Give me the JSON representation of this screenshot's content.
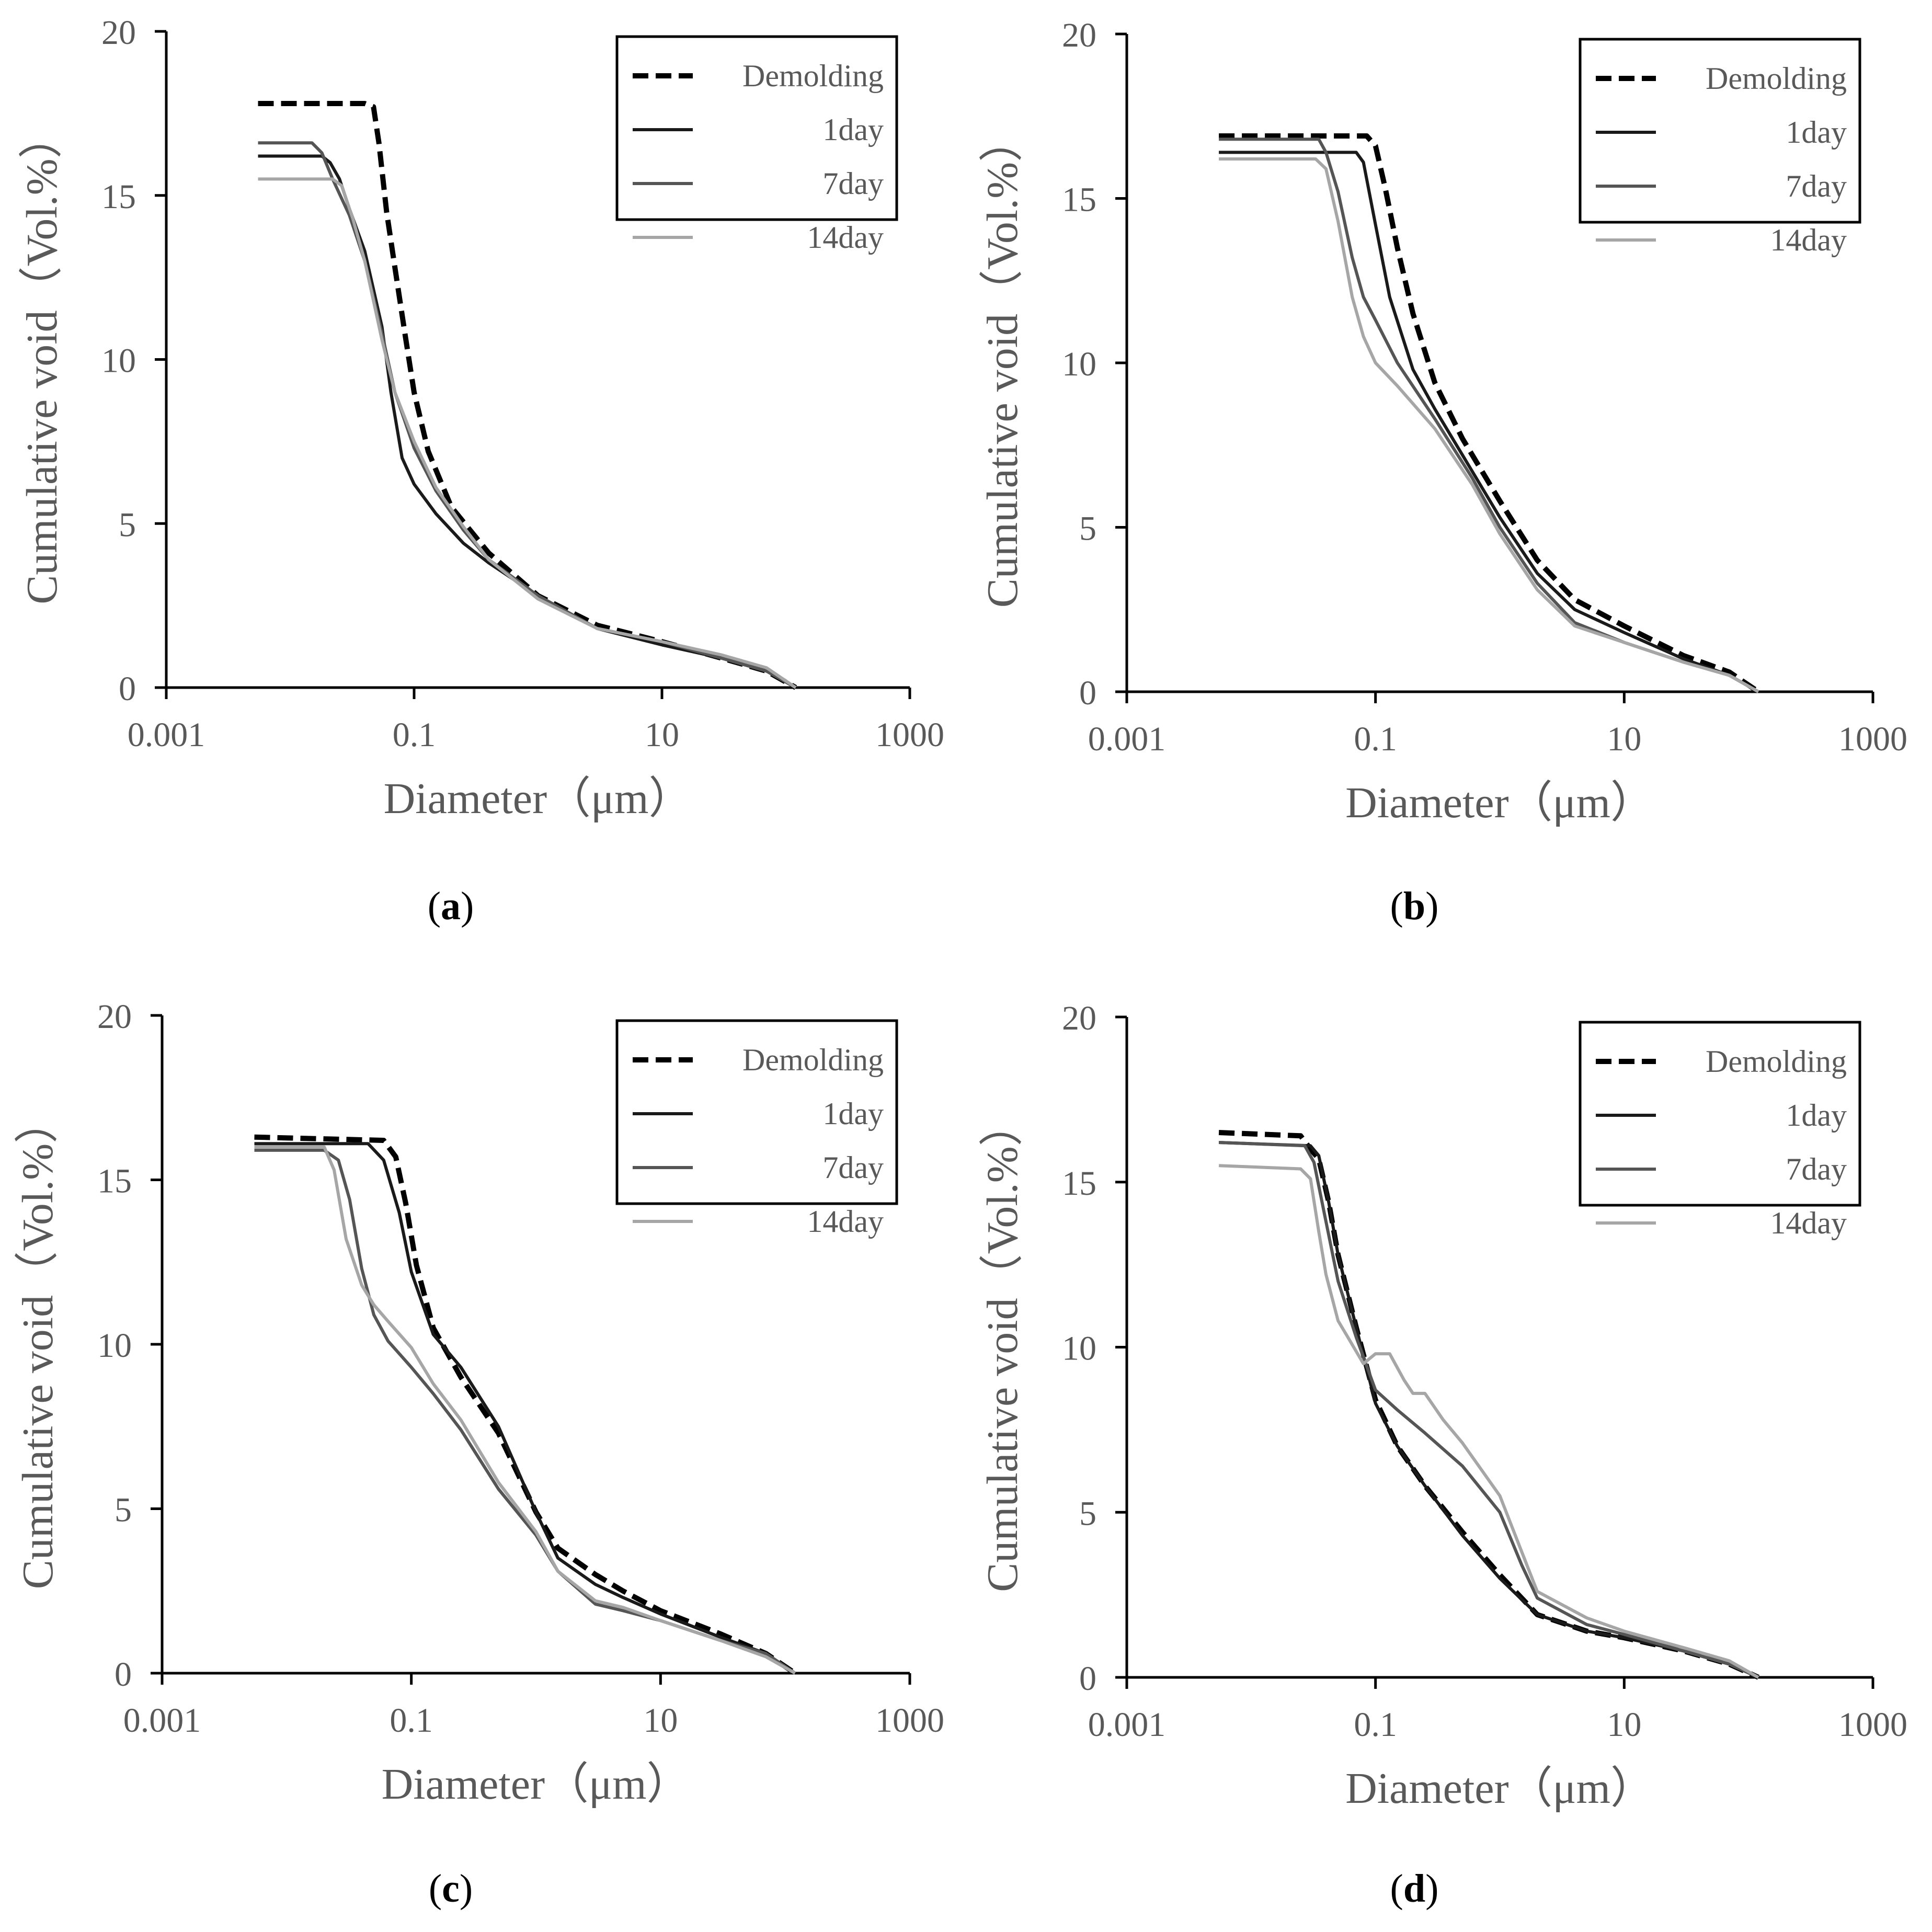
{
  "figure": {
    "colors": {
      "axis": "#000000",
      "text": "#595959",
      "demolding": "#000000",
      "day1": "#1a1a1a",
      "day7": "#555555",
      "day14": "#a6a6a6"
    }
  },
  "chart_data": [
    {
      "id": "a",
      "caption": "a",
      "type": "line",
      "xlabel": "Diameter（μm）",
      "ylabel": "Cumulative void（Vol.%）",
      "xscale": "log",
      "xlim": [
        0.001,
        1000
      ],
      "ylim": [
        0,
        20
      ],
      "xticks": [
        0.001,
        0.1,
        10,
        1000
      ],
      "xtick_labels": [
        "0.001",
        "0.1",
        "10",
        "1000"
      ],
      "yticks": [
        0,
        5,
        10,
        15,
        20
      ],
      "ytick_labels": [
        "0",
        "5",
        "10",
        "15",
        "20"
      ],
      "legend": {
        "position": "top-right",
        "entries": [
          "Demolding",
          "1day",
          "7day",
          "14day"
        ]
      },
      "series": [
        {
          "name": "Demolding",
          "style": "dashed",
          "color": "#000000",
          "x": [
            0.0055,
            0.04,
            0.047,
            0.052,
            0.06,
            0.07,
            0.085,
            0.1,
            0.13,
            0.2,
            0.4,
            1,
            3,
            10,
            30,
            70,
            120
          ],
          "y": [
            17.8,
            17.8,
            17.7,
            16.6,
            14.5,
            12.8,
            10.7,
            9.0,
            7.2,
            5.5,
            4.1,
            2.8,
            1.9,
            1.4,
            0.9,
            0.5,
            0
          ]
        },
        {
          "name": "1day",
          "style": "solid",
          "color": "#1a1a1a",
          "x": [
            0.0055,
            0.018,
            0.021,
            0.025,
            0.03,
            0.04,
            0.055,
            0.065,
            0.08,
            0.1,
            0.15,
            0.25,
            0.4,
            1,
            3,
            10,
            30,
            70,
            120
          ],
          "y": [
            16.2,
            16.2,
            16.0,
            15.5,
            14.6,
            13.3,
            11.0,
            9.0,
            7.0,
            6.2,
            5.3,
            4.4,
            3.8,
            2.8,
            1.8,
            1.3,
            0.9,
            0.5,
            0
          ]
        },
        {
          "name": "7day",
          "style": "solid",
          "color": "#555555",
          "x": [
            0.0055,
            0.015,
            0.018,
            0.022,
            0.03,
            0.04,
            0.055,
            0.07,
            0.1,
            0.15,
            0.25,
            0.4,
            1,
            3,
            10,
            30,
            70,
            120
          ],
          "y": [
            16.6,
            16.6,
            16.3,
            15.5,
            14.4,
            13.0,
            10.8,
            9.0,
            7.3,
            6.0,
            4.8,
            3.9,
            2.8,
            1.8,
            1.4,
            0.9,
            0.5,
            0
          ]
        },
        {
          "name": "14day",
          "style": "solid",
          "color": "#a6a6a6",
          "x": [
            0.0055,
            0.022,
            0.026,
            0.032,
            0.04,
            0.055,
            0.07,
            0.1,
            0.15,
            0.25,
            0.4,
            1,
            3,
            10,
            30,
            70,
            120
          ],
          "y": [
            15.5,
            15.5,
            15.3,
            14.3,
            13.0,
            10.6,
            9.0,
            7.5,
            6.1,
            4.9,
            3.9,
            2.7,
            1.8,
            1.4,
            1.0,
            0.6,
            0
          ]
        }
      ]
    },
    {
      "id": "b",
      "caption": "b",
      "type": "line",
      "xlabel": "Diameter（μm）",
      "ylabel": "Cumulative void（Vol.%）",
      "xscale": "log",
      "xlim": [
        0.001,
        1000
      ],
      "ylim": [
        0,
        20
      ],
      "xticks": [
        0.001,
        0.1,
        10,
        1000
      ],
      "xtick_labels": [
        "0.001",
        "0.1",
        "10",
        "1000"
      ],
      "yticks": [
        0,
        5,
        10,
        15,
        20
      ],
      "ytick_labels": [
        "0",
        "5",
        "10",
        "15",
        "20"
      ],
      "legend": {
        "position": "top-right",
        "entries": [
          "Demolding",
          "1day",
          "7day",
          "14day"
        ]
      },
      "series": [
        {
          "name": "Demolding",
          "style": "dashed",
          "color": "#000000",
          "x": [
            0.0055,
            0.085,
            0.1,
            0.12,
            0.15,
            0.2,
            0.3,
            0.5,
            1,
            2,
            4,
            10,
            30,
            70,
            120
          ],
          "y": [
            16.9,
            16.9,
            16.6,
            15.3,
            13.5,
            11.5,
            9.4,
            7.7,
            5.8,
            4.0,
            2.8,
            2.0,
            1.1,
            0.6,
            0
          ]
        },
        {
          "name": "1day",
          "style": "solid",
          "color": "#1a1a1a",
          "x": [
            0.0055,
            0.07,
            0.08,
            0.1,
            0.13,
            0.2,
            0.3,
            0.5,
            1,
            2,
            4,
            10,
            30,
            70,
            120
          ],
          "y": [
            16.4,
            16.4,
            16.1,
            14.2,
            12.0,
            9.8,
            8.6,
            7.2,
            5.3,
            3.6,
            2.5,
            1.8,
            1.0,
            0.5,
            0
          ]
        },
        {
          "name": "7day",
          "style": "solid",
          "color": "#555555",
          "x": [
            0.0055,
            0.035,
            0.04,
            0.05,
            0.065,
            0.08,
            0.1,
            0.15,
            0.3,
            0.6,
            1,
            2,
            4,
            10,
            30,
            70,
            120
          ],
          "y": [
            16.8,
            16.8,
            16.4,
            15.2,
            13.2,
            12.0,
            11.3,
            10.0,
            8.3,
            6.5,
            5.0,
            3.3,
            2.1,
            1.5,
            0.9,
            0.5,
            0
          ]
        },
        {
          "name": "14day",
          "style": "solid",
          "color": "#a6a6a6",
          "x": [
            0.0055,
            0.033,
            0.04,
            0.05,
            0.065,
            0.08,
            0.1,
            0.15,
            0.3,
            0.6,
            1,
            2,
            4,
            10,
            30,
            70,
            120
          ],
          "y": [
            16.2,
            16.2,
            15.9,
            14.3,
            12.0,
            10.8,
            10.0,
            9.3,
            8.0,
            6.3,
            4.8,
            3.1,
            2.0,
            1.5,
            0.9,
            0.5,
            0
          ]
        }
      ]
    },
    {
      "id": "c",
      "caption": "c",
      "type": "line",
      "xlabel": "Diameter（μm）",
      "ylabel": "Cumulative void（Vol.%）",
      "xscale": "log",
      "xlim": [
        0.001,
        1000
      ],
      "ylim": [
        0,
        20
      ],
      "xticks": [
        0.001,
        0.1,
        10,
        1000
      ],
      "xtick_labels": [
        "0.001",
        "0.1",
        "10",
        "1000"
      ],
      "yticks": [
        0,
        5,
        10,
        15,
        20
      ],
      "ytick_labels": [
        "0",
        "5",
        "10",
        "15",
        "20"
      ],
      "legend": {
        "position": "top-right",
        "entries": [
          "Demolding",
          "1day",
          "7day",
          "14day"
        ]
      },
      "series": [
        {
          "name": "Demolding",
          "style": "dashed",
          "color": "#000000",
          "x": [
            0.0055,
            0.06,
            0.075,
            0.09,
            0.11,
            0.15,
            0.25,
            0.5,
            1,
            1.5,
            3,
            5,
            10,
            30,
            70,
            120
          ],
          "y": [
            16.3,
            16.2,
            15.7,
            14.3,
            12.4,
            10.5,
            9.0,
            7.3,
            4.9,
            3.8,
            3.0,
            2.5,
            1.9,
            1.2,
            0.6,
            0
          ]
        },
        {
          "name": "1day",
          "style": "solid",
          "color": "#1a1a1a",
          "x": [
            0.0055,
            0.045,
            0.06,
            0.08,
            0.1,
            0.15,
            0.25,
            0.5,
            1,
            1.5,
            3,
            5,
            10,
            30,
            70,
            120
          ],
          "y": [
            16.1,
            16.1,
            15.6,
            14.0,
            12.2,
            10.3,
            9.3,
            7.5,
            4.9,
            3.5,
            2.7,
            2.3,
            1.8,
            1.1,
            0.6,
            0
          ]
        },
        {
          "name": "7day",
          "style": "solid",
          "color": "#555555",
          "x": [
            0.0055,
            0.02,
            0.026,
            0.032,
            0.04,
            0.05,
            0.065,
            0.1,
            0.15,
            0.25,
            0.5,
            1,
            1.5,
            3,
            5,
            10,
            30,
            70,
            120
          ],
          "y": [
            15.9,
            15.9,
            15.6,
            14.4,
            12.3,
            10.9,
            10.1,
            9.3,
            8.5,
            7.4,
            5.6,
            4.2,
            3.1,
            2.1,
            1.9,
            1.6,
            1.0,
            0.6,
            0
          ]
        },
        {
          "name": "14day",
          "style": "solid",
          "color": "#a6a6a6",
          "x": [
            0.0055,
            0.02,
            0.024,
            0.03,
            0.04,
            0.05,
            0.065,
            0.1,
            0.15,
            0.25,
            0.5,
            1,
            1.5,
            3,
            5,
            10,
            30,
            70,
            120
          ],
          "y": [
            16.0,
            16.0,
            15.3,
            13.2,
            11.8,
            11.2,
            10.7,
            9.9,
            8.8,
            7.7,
            5.8,
            4.3,
            3.1,
            2.2,
            2.0,
            1.6,
            1.0,
            0.5,
            0
          ]
        }
      ]
    },
    {
      "id": "d",
      "caption": "d",
      "type": "line",
      "xlabel": "Diameter（μm）",
      "ylabel": "Cumulative void（Vol.%）",
      "xscale": "log",
      "xlim": [
        0.001,
        1000
      ],
      "ylim": [
        0,
        20
      ],
      "xticks": [
        0.001,
        0.1,
        10,
        1000
      ],
      "xtick_labels": [
        "0.001",
        "0.1",
        "10",
        "1000"
      ],
      "yticks": [
        0,
        5,
        10,
        15,
        20
      ],
      "ytick_labels": [
        "0",
        "5",
        "10",
        "15",
        "20"
      ],
      "legend": {
        "position": "top-right",
        "entries": [
          "Demolding",
          "1day",
          "7day",
          "14day"
        ]
      },
      "series": [
        {
          "name": "Demolding",
          "style": "dashed",
          "color": "#000000",
          "x": [
            0.0055,
            0.025,
            0.03,
            0.035,
            0.042,
            0.05,
            0.07,
            0.1,
            0.15,
            0.25,
            0.5,
            1,
            2,
            5,
            10,
            30,
            70,
            120
          ],
          "y": [
            16.5,
            16.4,
            16.0,
            15.7,
            14.4,
            12.8,
            10.6,
            8.4,
            7.0,
            5.8,
            4.4,
            3.1,
            1.9,
            1.4,
            1.2,
            0.8,
            0.4,
            0
          ]
        },
        {
          "name": "1day",
          "style": "solid",
          "color": "#1a1a1a",
          "x": [
            0.0055,
            0.03,
            0.035,
            0.042,
            0.05,
            0.07,
            0.1,
            0.15,
            0.25,
            0.5,
            1,
            2,
            5,
            10,
            30,
            70,
            120
          ],
          "y": [
            16.2,
            16.1,
            15.8,
            14.4,
            12.8,
            10.6,
            8.3,
            7.0,
            5.8,
            4.3,
            3.0,
            1.9,
            1.4,
            1.2,
            0.8,
            0.4,
            0
          ]
        },
        {
          "name": "7day",
          "style": "solid",
          "color": "#555555",
          "x": [
            0.0055,
            0.027,
            0.032,
            0.04,
            0.05,
            0.07,
            0.1,
            0.15,
            0.25,
            0.5,
            1,
            1.5,
            2,
            5,
            10,
            30,
            70,
            120
          ],
          "y": [
            16.2,
            16.1,
            15.6,
            13.8,
            12.0,
            10.3,
            8.7,
            8.1,
            7.4,
            6.4,
            5.0,
            3.4,
            2.4,
            1.6,
            1.3,
            0.8,
            0.4,
            0
          ]
        },
        {
          "name": "14day",
          "style": "solid",
          "color": "#a6a6a6",
          "x": [
            0.0055,
            0.025,
            0.03,
            0.035,
            0.04,
            0.05,
            0.06,
            0.08,
            0.1,
            0.13,
            0.17,
            0.2,
            0.25,
            0.35,
            0.5,
            1,
            1.5,
            2,
            5,
            10,
            30,
            70,
            120
          ],
          "y": [
            15.5,
            15.4,
            15.1,
            13.5,
            12.2,
            10.8,
            10.3,
            9.5,
            9.8,
            9.8,
            9.0,
            8.6,
            8.6,
            7.8,
            7.1,
            5.5,
            3.8,
            2.6,
            1.8,
            1.4,
            0.9,
            0.5,
            0
          ]
        }
      ]
    }
  ]
}
